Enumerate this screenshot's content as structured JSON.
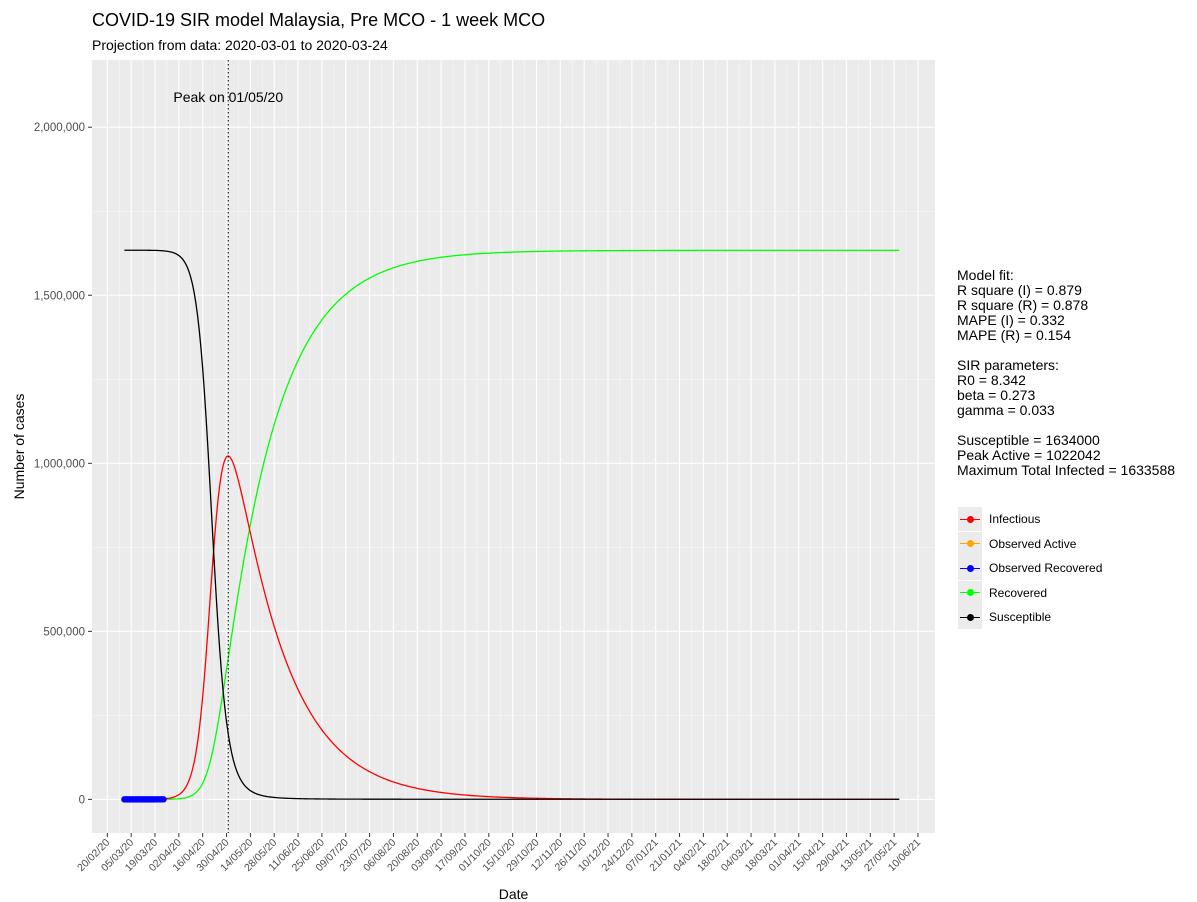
{
  "title": "COVID-19 SIR model Malaysia, Pre MCO - 1 week MCO",
  "subtitle": "Projection from data: 2020-03-01 to 2020-03-24",
  "annotation": {
    "lines": [
      "Model fit:",
      "R square (I) = 0.879",
      "R square (R) = 0.878",
      "MAPE (I) = 0.332",
      "MAPE (R) = 0.154",
      "",
      "SIR parameters:",
      "R0 = 8.342",
      "beta = 0.273",
      "gamma = 0.033",
      "",
      "Susceptible = 1634000",
      "Peak Active = 1022042",
      "Maximum Total Infected = 1633588"
    ]
  },
  "legend": [
    {
      "label": "Infectious",
      "color": "#ff0000"
    },
    {
      "label": "Observed Active",
      "color": "#ffa500"
    },
    {
      "label": "Observed Recovered",
      "color": "#0000ff"
    },
    {
      "label": "Recovered",
      "color": "#00ff00"
    },
    {
      "label": "Susceptible",
      "color": "#000000"
    }
  ],
  "chart_data": {
    "type": "line",
    "title": "COVID-19 SIR model Malaysia, Pre MCO - 1 week MCO",
    "subtitle": "Projection from data: 2020-03-01 to 2020-03-24",
    "xlabel": "Date",
    "ylabel": "Number of cases",
    "xlim": [
      "2020-02-11",
      "2021-06-20"
    ],
    "ylim": [
      -100000,
      2200000
    ],
    "grid": true,
    "legend_position": "right",
    "x_ticks": [
      "20/02/20",
      "05/03/20",
      "19/03/20",
      "02/04/20",
      "16/04/20",
      "30/04/20",
      "14/05/20",
      "28/05/20",
      "11/06/20",
      "25/06/20",
      "09/07/20",
      "23/07/20",
      "06/08/20",
      "20/08/20",
      "03/09/20",
      "17/09/20",
      "01/10/20",
      "15/10/20",
      "29/10/20",
      "12/11/20",
      "26/11/20",
      "10/12/20",
      "24/12/20",
      "07/01/21",
      "21/01/21",
      "04/02/21",
      "18/02/21",
      "04/03/21",
      "18/03/21",
      "01/04/21",
      "15/04/21",
      "29/04/21",
      "13/05/21",
      "27/05/21",
      "10/06/21"
    ],
    "y_ticks": [
      0,
      500000,
      1000000,
      1500000,
      2000000
    ],
    "y_tick_labels": [
      "0",
      "500,000",
      "1,000,000",
      "1,500,000",
      "2,000,000"
    ],
    "peak_annotation": {
      "text": "Peak on 01/05/20",
      "date": "2020-05-01"
    },
    "model": {
      "start_date": "2020-03-01",
      "end_date": "2021-06-01",
      "N": 1634000,
      "beta": 0.273,
      "gamma": 0.033
    },
    "series": [
      {
        "name": "Infectious",
        "color": "#ff0000",
        "peak_value": 1022042
      },
      {
        "name": "Recovered",
        "color": "#00ff00",
        "final_value": 1633588
      },
      {
        "name": "Susceptible",
        "color": "#000000",
        "initial_value": 1634000
      },
      {
        "name": "Observed Active",
        "color": "#ffa500",
        "values": []
      },
      {
        "name": "Observed Recovered",
        "color": "#0000ff",
        "x": [
          "2020-03-01",
          "2020-03-02",
          "2020-03-03",
          "2020-03-04",
          "2020-03-05",
          "2020-03-06",
          "2020-03-07",
          "2020-03-08",
          "2020-03-09",
          "2020-03-10",
          "2020-03-11",
          "2020-03-12",
          "2020-03-13",
          "2020-03-14",
          "2020-03-15",
          "2020-03-16",
          "2020-03-17",
          "2020-03-18",
          "2020-03-19",
          "2020-03-20",
          "2020-03-21",
          "2020-03-22",
          "2020-03-23",
          "2020-03-24"
        ],
        "values": [
          22,
          22,
          22,
          22,
          22,
          22,
          22,
          24,
          24,
          26,
          26,
          26,
          26,
          26,
          35,
          42,
          42,
          60,
          75,
          87,
          114,
          139,
          159,
          183
        ]
      }
    ]
  }
}
